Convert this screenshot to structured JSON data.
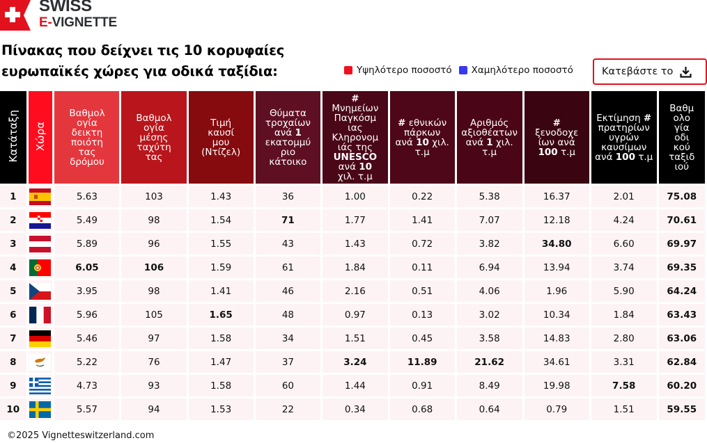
{
  "logo": {
    "line1": "SWISS",
    "line2_prefix": "E-",
    "line2_rest": "VIGNETTE",
    "brand_color": "#e3101d"
  },
  "title": "Πίνακας που δείχνει τις 10 κορυφαίες ευρωπαϊκές χώρες για οδικά ταξίδια:",
  "legend": {
    "high": {
      "label": "Υψηλότερο ποσοστό",
      "color": "#f0101e"
    },
    "low": {
      "label": "Χαμηλότερο ποσοστό",
      "color": "#3838f2"
    }
  },
  "download_button": {
    "label": "Κατεβάστε το",
    "icon": "download-icon"
  },
  "table": {
    "headers": [
      {
        "key": "rank",
        "label": "Κατάταξη",
        "bg": "#000000",
        "vertical": true
      },
      {
        "key": "country",
        "label": "Χώρα",
        "bg": "#ff0d1f",
        "vertical": true
      },
      {
        "key": "road_quality",
        "label": "Βαθμολογία δείκτη ποιότητας δρόμου",
        "bg": "#e4373d"
      },
      {
        "key": "avg_speed",
        "label": "Βαθμολογία μέσης ταχύτητας",
        "bg": "#b8161c"
      },
      {
        "key": "diesel_price",
        "label": "Τιμή καυσίμου (Ντίζελ)",
        "bg": "#860b0f"
      },
      {
        "key": "road_deaths",
        "label": "Θύματα τροχαίων ανά 1 εκατομμύριο κάτοικο",
        "bg": "#5e1022"
      },
      {
        "key": "unesco",
        "label": "# Μνημείων Παγκόσμιας Κληρονομιάς της UNESCO ανά 10 χιλ. τ.μ",
        "bg": "#4a0718"
      },
      {
        "key": "national_parks",
        "label": "# εθνικών πάρκων ανά 10 χιλ. τ.μ",
        "bg": "#4d0718"
      },
      {
        "key": "attractions",
        "label": "Αριθμός αξιοθέατων ανά 1 χιλ. τ.μ",
        "bg": "#4a0616"
      },
      {
        "key": "hotels",
        "label": "# ξενοδοχείων ανά 100 τ.μ",
        "bg": "#3a0410"
      },
      {
        "key": "fuel_stations",
        "label": "Εκτίμηση # πρατηρίων υγρών καυσίμων ανά 100 τ.μ",
        "bg": "#000000"
      },
      {
        "key": "total",
        "label": "Βαθμολογία οδικού ταξιδιού",
        "bg": "#000000"
      }
    ],
    "rows": [
      {
        "rank": "1",
        "country": "Spain",
        "flag": "spain-flag-icon",
        "road_quality": "5.63",
        "avg_speed": "103",
        "diesel_price": "1.43",
        "road_deaths": "36",
        "unesco": "1.00",
        "national_parks": "0.22",
        "attractions": "5.38",
        "hotels": "16.37",
        "fuel_stations": "2.01",
        "total": "75.08",
        "highlights": {
          "total": "high"
        }
      },
      {
        "rank": "2",
        "country": "Croatia",
        "flag": "croatia-flag-icon",
        "road_quality": "5.49",
        "avg_speed": "98",
        "diesel_price": "1.54",
        "road_deaths": "71",
        "unesco": "1.77",
        "national_parks": "1.41",
        "attractions": "7.07",
        "hotels": "12.18",
        "fuel_stations": "4.24",
        "total": "70.61",
        "highlights": {
          "road_deaths": "high"
        }
      },
      {
        "rank": "3",
        "country": "Austria",
        "flag": "austria-flag-icon",
        "road_quality": "5.89",
        "avg_speed": "96",
        "diesel_price": "1.55",
        "road_deaths": "43",
        "unesco": "1.43",
        "national_parks": "0.72",
        "attractions": "3.82",
        "hotels": "34.80",
        "fuel_stations": "6.60",
        "total": "69.97",
        "highlights": {
          "hotels": "high"
        }
      },
      {
        "rank": "4",
        "country": "Portugal",
        "flag": "portugal-flag-icon",
        "road_quality": "6.05",
        "avg_speed": "106",
        "diesel_price": "1.59",
        "road_deaths": "61",
        "unesco": "1.84",
        "national_parks": "0.11",
        "attractions": "6.94",
        "hotels": "13.94",
        "fuel_stations": "3.74",
        "total": "69.35",
        "highlights": {
          "road_quality": "high",
          "avg_speed": "high",
          "national_parks": "low"
        }
      },
      {
        "rank": "5",
        "country": "Czech Republic",
        "flag": "czech-flag-icon",
        "road_quality": "3.95",
        "avg_speed": "98",
        "diesel_price": "1.41",
        "road_deaths": "46",
        "unesco": "2.16",
        "national_parks": "0.51",
        "attractions": "4.06",
        "hotels": "1.96",
        "fuel_stations": "5.90",
        "total": "64.24",
        "highlights": {
          "road_quality": "low",
          "diesel_price": "low"
        }
      },
      {
        "rank": "6",
        "country": "France",
        "flag": "france-flag-icon",
        "road_quality": "5.96",
        "avg_speed": "105",
        "diesel_price": "1.65",
        "road_deaths": "48",
        "unesco": "0.97",
        "national_parks": "0.13",
        "attractions": "3.02",
        "hotels": "10.34",
        "fuel_stations": "1.84",
        "total": "63.43",
        "highlights": {
          "diesel_price": "high"
        }
      },
      {
        "rank": "7",
        "country": "Germany",
        "flag": "germany-flag-icon",
        "road_quality": "5.46",
        "avg_speed": "97",
        "diesel_price": "1.58",
        "road_deaths": "34",
        "unesco": "1.51",
        "national_parks": "0.45",
        "attractions": "3.58",
        "hotels": "14.83",
        "fuel_stations": "2.80",
        "total": "63.06",
        "highlights": {}
      },
      {
        "rank": "8",
        "country": "Cyprus",
        "flag": "cyprus-flag-icon",
        "road_quality": "5.22",
        "avg_speed": "76",
        "diesel_price": "1.47",
        "road_deaths": "37",
        "unesco": "3.24",
        "national_parks": "11.89",
        "attractions": "21.62",
        "hotels": "34.61",
        "fuel_stations": "3.31",
        "total": "62.84",
        "highlights": {
          "avg_speed": "low",
          "unesco": "high",
          "national_parks": "high",
          "attractions": "high"
        }
      },
      {
        "rank": "9",
        "country": "Greece",
        "flag": "greece-flag-icon",
        "road_quality": "4.73",
        "avg_speed": "93",
        "diesel_price": "1.58",
        "road_deaths": "60",
        "unesco": "1.44",
        "national_parks": "0.91",
        "attractions": "8.49",
        "hotels": "19.98",
        "fuel_stations": "7.58",
        "total": "60.20",
        "highlights": {
          "fuel_stations": "high"
        }
      },
      {
        "rank": "10",
        "country": "Sweden",
        "flag": "sweden-flag-icon",
        "road_quality": "5.57",
        "avg_speed": "94",
        "diesel_price": "1.53",
        "road_deaths": "22",
        "unesco": "0.34",
        "national_parks": "0.68",
        "attractions": "0.64",
        "hotels": "0.79",
        "fuel_stations": "1.51",
        "total": "59.55",
        "highlights": {
          "road_deaths": "low",
          "unesco": "low",
          "attractions": "low",
          "hotels": "low",
          "fuel_stations": "low",
          "total": "low"
        }
      }
    ]
  },
  "footer": "©2025 Vignetteswitzerland.com"
}
